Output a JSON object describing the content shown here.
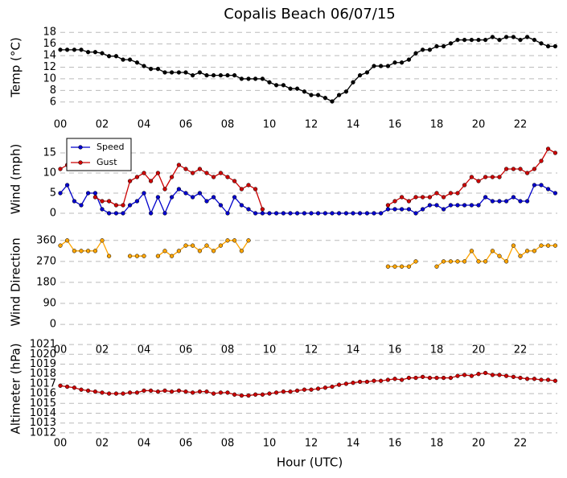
{
  "title": "Copalis Beach 06/07/15",
  "xlabel": "Hour (UTC)",
  "chart_data": [
    {
      "type": "line",
      "ylabel": "Temp (°C)",
      "color": "#000000",
      "grid": true,
      "xlim": [
        0,
        23.77
      ],
      "ylim": [
        5,
        19
      ],
      "yticks": [
        6,
        8,
        10,
        12,
        14,
        16,
        18
      ],
      "xticks": [
        {
          "value": 0,
          "label": "00"
        },
        {
          "value": 2,
          "label": "02"
        },
        {
          "value": 4,
          "label": "04"
        },
        {
          "value": 6,
          "label": "06"
        },
        {
          "value": 8,
          "label": "08"
        },
        10,
        12,
        14,
        16,
        18,
        20,
        22
      ],
      "x": [
        0,
        0.33,
        0.67,
        1,
        1.33,
        1.67,
        2,
        2.33,
        2.67,
        3,
        3.33,
        3.67,
        4,
        4.33,
        4.67,
        5,
        5.33,
        5.67,
        6,
        6.33,
        6.67,
        7,
        7.33,
        7.67,
        8,
        8.33,
        8.67,
        9,
        9.33,
        9.67,
        10,
        10.33,
        10.67,
        11,
        11.33,
        11.67,
        12,
        12.33,
        12.67,
        13,
        13.33,
        13.67,
        14,
        14.33,
        14.67,
        15,
        15.33,
        15.67,
        16,
        16.33,
        16.67,
        17,
        17.33,
        17.67,
        18,
        18.33,
        18.67,
        19,
        19.33,
        19.67,
        20,
        20.33,
        20.67,
        21,
        21.33,
        21.67,
        22,
        22.33,
        22.67,
        23,
        23.33,
        23.67
      ],
      "values": [
        15,
        15,
        15,
        15,
        14.6,
        14.6,
        14.4,
        13.9,
        13.9,
        13.3,
        13.3,
        12.8,
        12.2,
        11.7,
        11.7,
        11.1,
        11.1,
        11.1,
        11.1,
        10.6,
        11.1,
        10.6,
        10.6,
        10.6,
        10.6,
        10.6,
        10,
        10,
        10,
        10,
        9.4,
        8.9,
        8.9,
        8.3,
        8.3,
        7.8,
        7.2,
        7.2,
        6.7,
        6.1,
        7.2,
        7.8,
        9.4,
        10.6,
        11.1,
        12.2,
        12.2,
        12.2,
        12.8,
        12.8,
        13.3,
        14.4,
        15,
        15,
        15.6,
        15.6,
        16.1,
        16.7,
        16.7,
        16.7,
        16.7,
        16.7,
        17.2,
        16.7,
        17.2,
        17.2,
        16.7,
        17.2,
        16.7,
        16.1,
        15.6,
        15.6
      ]
    },
    {
      "type": "line",
      "ylabel": "Wind (mph)",
      "grid": true,
      "legend": "upper left",
      "xlim": [
        0,
        23.77
      ],
      "ylim": [
        -2,
        19
      ],
      "yticks": [
        0,
        5,
        10,
        15
      ],
      "x": [
        0,
        0.33,
        0.67,
        1,
        1.33,
        1.67,
        2,
        2.33,
        2.67,
        3,
        3.33,
        3.67,
        4,
        4.33,
        4.67,
        5,
        5.33,
        5.67,
        6,
        6.33,
        6.67,
        7,
        7.33,
        7.67,
        8,
        8.33,
        8.67,
        9,
        9.33,
        9.67,
        10,
        10.33,
        10.67,
        11,
        11.33,
        11.67,
        12,
        12.33,
        12.67,
        13,
        13.33,
        13.67,
        14,
        14.33,
        14.67,
        15,
        15.33,
        15.67,
        16,
        16.33,
        16.67,
        17,
        17.33,
        17.67,
        18,
        18.33,
        18.67,
        19,
        19.33,
        19.67,
        20,
        20.33,
        20.67,
        21,
        21.33,
        21.67,
        22,
        22.33,
        22.67,
        23,
        23.33,
        23.67
      ],
      "series": [
        {
          "name": "Speed",
          "color": "#0000cc",
          "values": [
            5,
            7,
            3,
            2,
            5,
            5,
            1,
            0,
            0,
            0,
            2,
            3,
            5,
            0,
            4,
            0,
            4,
            6,
            5,
            4,
            5,
            3,
            4,
            2,
            0,
            4,
            2,
            1,
            0,
            0,
            0,
            0,
            0,
            0,
            0,
            0,
            0,
            0,
            0,
            0,
            0,
            0,
            0,
            0,
            0,
            0,
            0,
            1,
            1,
            1,
            1,
            0,
            1,
            2,
            2,
            1,
            2,
            2,
            2,
            2,
            2,
            4,
            3,
            3,
            3,
            4,
            3,
            3,
            7,
            7,
            6,
            5
          ]
        },
        {
          "name": "Gust",
          "color": "#cc0000",
          "values": [
            11,
            12,
            null,
            null,
            null,
            4,
            3,
            3,
            2,
            2,
            8,
            9,
            10,
            8,
            10,
            6,
            9,
            12,
            11,
            10,
            11,
            10,
            9,
            10,
            9,
            8,
            6,
            7,
            6,
            1,
            null,
            null,
            null,
            null,
            null,
            null,
            null,
            null,
            null,
            null,
            null,
            null,
            null,
            null,
            null,
            null,
            null,
            2,
            3,
            4,
            3,
            4,
            4,
            4,
            5,
            4,
            5,
            5,
            7,
            9,
            8,
            9,
            9,
            9,
            11,
            11,
            11,
            10,
            11,
            13,
            16,
            15
          ]
        }
      ]
    },
    {
      "type": "line",
      "ylabel": "Wind Direction",
      "color": "#ffa500",
      "grid": true,
      "xlim": [
        0,
        23.77
      ],
      "ylim": [
        -17,
        380
      ],
      "yticks": [
        0,
        90,
        180,
        270,
        360
      ],
      "xticks": [
        {
          "value": 0,
          "label": "00"
        },
        {
          "value": 2,
          "label": "02"
        },
        {
          "value": 4,
          "label": "04"
        },
        {
          "value": 6,
          "label": "06"
        },
        {
          "value": 8,
          "label": "08"
        },
        10,
        12,
        14,
        16,
        18,
        20,
        22
      ],
      "x": [
        0,
        0.33,
        0.67,
        1,
        1.33,
        1.67,
        2,
        2.33,
        2.67,
        3,
        3.33,
        3.67,
        4,
        4.33,
        4.67,
        5,
        5.33,
        5.67,
        6,
        6.33,
        6.67,
        7,
        7.33,
        7.67,
        8,
        8.33,
        8.67,
        9,
        9.33,
        9.67,
        10,
        10.33,
        10.67,
        11,
        11.33,
        11.67,
        12,
        12.33,
        12.67,
        13,
        13.33,
        13.67,
        14,
        14.33,
        14.67,
        15,
        15.33,
        15.67,
        16,
        16.33,
        16.67,
        17,
        17.33,
        17.67,
        18,
        18.33,
        18.67,
        19,
        19.33,
        19.67,
        20,
        20.33,
        20.67,
        21,
        21.33,
        21.67,
        22,
        22.33,
        22.67,
        23,
        23.33,
        23.67
      ],
      "values": [
        338,
        360,
        315,
        315,
        315,
        315,
        360,
        293,
        null,
        null,
        293,
        293,
        293,
        null,
        293,
        315,
        293,
        315,
        338,
        338,
        315,
        338,
        315,
        338,
        360,
        360,
        315,
        360,
        null,
        null,
        null,
        null,
        null,
        null,
        null,
        null,
        null,
        null,
        null,
        null,
        null,
        null,
        null,
        null,
        null,
        null,
        null,
        248,
        248,
        248,
        248,
        270,
        null,
        null,
        248,
        270,
        270,
        270,
        270,
        315,
        270,
        270,
        315,
        293,
        270,
        338,
        293,
        315,
        315,
        338,
        338,
        338
      ]
    },
    {
      "type": "line",
      "ylabel": "Altimeter (hPa)",
      "color": "#cc0000",
      "grid": true,
      "xlim": [
        0,
        23.77
      ],
      "ylim": [
        1011.5,
        1021.5
      ],
      "yticks": [
        1012,
        1013,
        1014,
        1015,
        1016,
        1017,
        1018,
        1019,
        1020,
        1021
      ],
      "xticks": [
        {
          "value": 0,
          "label": "00"
        },
        {
          "value": 2,
          "label": "02"
        },
        {
          "value": 4,
          "label": "04"
        },
        {
          "value": 6,
          "label": "06"
        },
        {
          "value": 8,
          "label": "08"
        },
        10,
        12,
        14,
        16,
        18,
        20,
        22
      ],
      "x": [
        0,
        0.33,
        0.67,
        1,
        1.33,
        1.67,
        2,
        2.33,
        2.67,
        3,
        3.33,
        3.67,
        4,
        4.33,
        4.67,
        5,
        5.33,
        5.67,
        6,
        6.33,
        6.67,
        7,
        7.33,
        7.67,
        8,
        8.33,
        8.67,
        9,
        9.33,
        9.67,
        10,
        10.33,
        10.67,
        11,
        11.33,
        11.67,
        12,
        12.33,
        12.67,
        13,
        13.33,
        13.67,
        14,
        14.33,
        14.67,
        15,
        15.33,
        15.67,
        16,
        16.33,
        16.67,
        17,
        17.33,
        17.67,
        18,
        18.33,
        18.67,
        19,
        19.33,
        19.67,
        20,
        20.33,
        20.67,
        21,
        21.33,
        21.67,
        22,
        22.33,
        22.67,
        23,
        23.33,
        23.67
      ],
      "values": [
        1016.8,
        1016.7,
        1016.6,
        1016.4,
        1016.3,
        1016.2,
        1016.1,
        1016.0,
        1016.0,
        1016.0,
        1016.1,
        1016.1,
        1016.3,
        1016.3,
        1016.2,
        1016.3,
        1016.2,
        1016.3,
        1016.2,
        1016.1,
        1016.2,
        1016.2,
        1016.0,
        1016.1,
        1016.1,
        1015.9,
        1015.8,
        1015.8,
        1015.9,
        1015.9,
        1016.0,
        1016.1,
        1016.2,
        1016.2,
        1016.3,
        1016.4,
        1016.4,
        1016.5,
        1016.6,
        1016.7,
        1016.9,
        1017.0,
        1017.1,
        1017.2,
        1017.2,
        1017.3,
        1017.3,
        1017.4,
        1017.5,
        1017.4,
        1017.6,
        1017.6,
        1017.7,
        1017.6,
        1017.6,
        1017.6,
        1017.6,
        1017.8,
        1017.9,
        1017.8,
        1018.0,
        1018.1,
        1017.9,
        1017.9,
        1017.8,
        1017.7,
        1017.6,
        1017.5,
        1017.5,
        1017.4,
        1017.4,
        1017.3
      ]
    }
  ]
}
